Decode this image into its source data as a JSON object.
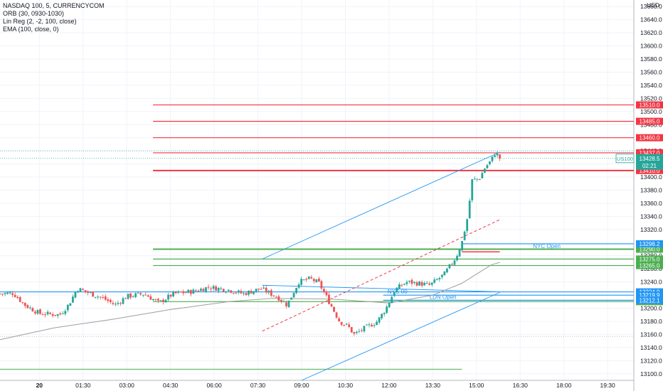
{
  "legend": {
    "symbol": "NASDAQ 100, 5, CURRENCYCOM",
    "ind1": "ORB (30, 0930-1030)",
    "ind2": "Lin Reg (2, -2, 100, close)",
    "ind3": "EMA (100, close, 0)"
  },
  "currency": "USD",
  "colors": {
    "up": "#26a69a",
    "down": "#ef5350",
    "resistance": "#f23645",
    "support": "#4caf50",
    "blue_level": "#2196f3",
    "channel": "#2196f3",
    "ema": "#9e9e9e",
    "midline": "#f23645"
  },
  "chart_data": {
    "type": "candlestick",
    "ylim": [
      13090,
      13670
    ],
    "y_ticks": [
      13660.0,
      13640.0,
      13620.0,
      13600.0,
      13580.0,
      13560.0,
      13540.0,
      13520.0,
      13500.0,
      13480.0,
      13460.0,
      13440.0,
      13420.0,
      13400.0,
      13380.0,
      13360.0,
      13340.0,
      13320.0,
      13300.0,
      13280.0,
      13260.0,
      13240.0,
      13220.0,
      13200.0,
      13180.0,
      13160.0,
      13140.0,
      13120.0,
      13100.0
    ],
    "x_ticks": [
      "20",
      "01:30",
      "03:00",
      "04:30",
      "06:00",
      "07:30",
      "09:00",
      "10:30",
      "12:00",
      "13:30",
      "15:00",
      "16:30",
      "18:00",
      "19:30"
    ],
    "x_tick_hours": [
      0,
      1.5,
      3,
      4.5,
      6,
      7.5,
      9,
      10.5,
      12,
      13.5,
      15,
      16.5,
      18,
      19.5
    ],
    "x_range_hours": [
      -1.35,
      20.4
    ],
    "current": {
      "symbol": "US100",
      "price": "13428.5",
      "countdown": "02:21",
      "value": 13428.5
    },
    "resistance_levels": [
      {
        "label": "13510.0",
        "value": 13510.0,
        "start_hour": 3.9
      },
      {
        "label": "13485.0",
        "value": 13485.0,
        "start_hour": 3.9
      },
      {
        "label": "13460.0",
        "value": 13460.0,
        "start_hour": 3.9
      },
      {
        "label": "13437.0",
        "value": 13437.0,
        "start_hour": 3.9
      },
      {
        "label": "13410.0",
        "value": 13410.0,
        "start_hour": 3.9
      }
    ],
    "support_levels": [
      {
        "label": "13290.0",
        "value": 13290.0,
        "start_hour": 3.9
      },
      {
        "label": "13275.0",
        "value": 13275.0,
        "start_hour": 3.9
      },
      {
        "label": "13265.0",
        "value": 13265.0,
        "start_hour": 3.9
      },
      {
        "label": "13210.0",
        "value": 13210.0,
        "start_hour": 3.9
      }
    ],
    "blue_levels": [
      {
        "label": "13298.2",
        "value": 13298.2,
        "start_hour": 14.5,
        "text": "NYC Open"
      },
      {
        "label": "13224.9",
        "value": 13224.9,
        "start_hour": -1.35,
        "text": ""
      },
      {
        "label": "13219.9",
        "value": 13219.9,
        "start_hour": 11.8,
        "text": "NYC 00"
      },
      {
        "label": "13212.1",
        "value": 13212.1,
        "start_hour": 11.8,
        "text": "LDN Open"
      }
    ],
    "bottom_line": {
      "value": 13107,
      "start_hour": -1.35,
      "end_hour": 14.5
    },
    "dotted_lines": [
      13440,
      13428.5,
      13157
    ],
    "orb_marker": {
      "value": 13286,
      "start_hour": 14.5,
      "end_hour": 15.8
    },
    "channel": [
      {
        "from": [
          7.65,
          13235
        ],
        "to": [
          15.8,
          13225
        ]
      },
      {
        "from": [
          7.65,
          13275
        ],
        "to": [
          15.8,
          13438
        ]
      },
      {
        "from": [
          9.0,
          13090
        ],
        "to": [
          15.8,
          13224
        ]
      }
    ],
    "regression_mid": {
      "from": [
        7.65,
        13165
      ],
      "to": [
        15.8,
        13335
      ]
    },
    "ema": [
      [
        -1.35,
        13152
      ],
      [
        0.5,
        13170
      ],
      [
        2.5,
        13183
      ],
      [
        4.5,
        13198
      ],
      [
        6.5,
        13210
      ],
      [
        8.0,
        13215
      ],
      [
        10.0,
        13214
      ],
      [
        12.0,
        13208
      ],
      [
        13.5,
        13220
      ],
      [
        14.5,
        13238
      ],
      [
        15.0,
        13252
      ],
      [
        15.5,
        13266
      ],
      [
        15.8,
        13270
      ]
    ],
    "anchors": [
      [
        -1.35,
        13222
      ],
      [
        -0.9,
        13223
      ],
      [
        -0.5,
        13205
      ],
      [
        0.0,
        13192
      ],
      [
        0.7,
        13190
      ],
      [
        1.0,
        13205
      ],
      [
        1.3,
        13230
      ],
      [
        1.6,
        13225
      ],
      [
        2.2,
        13215
      ],
      [
        2.6,
        13205
      ],
      [
        3.0,
        13218
      ],
      [
        3.6,
        13222
      ],
      [
        4.1,
        13208
      ],
      [
        4.6,
        13222
      ],
      [
        5.3,
        13226
      ],
      [
        5.8,
        13232
      ],
      [
        6.5,
        13228
      ],
      [
        7.0,
        13222
      ],
      [
        7.6,
        13230
      ],
      [
        8.2,
        13216
      ],
      [
        8.5,
        13205
      ],
      [
        8.9,
        13240
      ],
      [
        9.3,
        13245
      ],
      [
        9.6,
        13238
      ],
      [
        10.0,
        13205
      ],
      [
        10.3,
        13180
      ],
      [
        10.6,
        13172
      ],
      [
        10.8,
        13160
      ],
      [
        11.1,
        13168
      ],
      [
        11.6,
        13180
      ],
      [
        11.9,
        13200
      ],
      [
        12.2,
        13228
      ],
      [
        12.6,
        13240
      ],
      [
        13.0,
        13238
      ],
      [
        13.4,
        13235
      ],
      [
        13.9,
        13252
      ],
      [
        14.3,
        13278
      ],
      [
        14.5,
        13300
      ],
      [
        14.7,
        13340
      ],
      [
        14.85,
        13395
      ],
      [
        15.1,
        13398
      ],
      [
        15.3,
        13415
      ],
      [
        15.5,
        13425
      ],
      [
        15.65,
        13438
      ],
      [
        15.8,
        13428.5
      ]
    ],
    "candle_count": 200
  }
}
